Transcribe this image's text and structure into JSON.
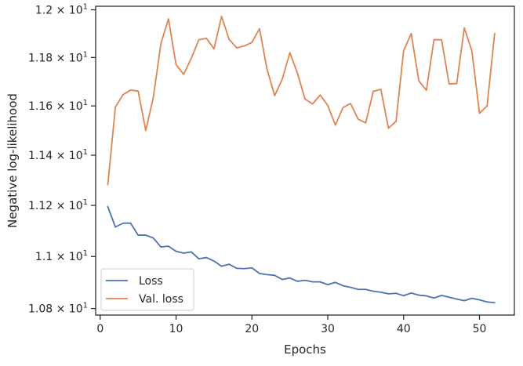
{
  "chart_data": {
    "type": "line",
    "xlabel": "Epochs",
    "ylabel": "Negative log-likelihood",
    "xlim": [
      -0.6,
      54.6
    ],
    "ylim": [
      10.775,
      12.015
    ],
    "yscale": "log",
    "grid": false,
    "legend_position": "lower-left",
    "x_ticks": [
      0,
      10,
      20,
      30,
      40,
      50
    ],
    "y_ticks": [
      {
        "value": 10.8,
        "mantissa": "1.08"
      },
      {
        "value": 11.0,
        "mantissa": "1.1"
      },
      {
        "value": 11.2,
        "mantissa": "1.12"
      },
      {
        "value": 11.4,
        "mantissa": "1.14"
      },
      {
        "value": 11.6,
        "mantissa": "1.16"
      },
      {
        "value": 11.8,
        "mantissa": "1.18"
      },
      {
        "value": 12.0,
        "mantissa": "1.2"
      }
    ],
    "tick_base": "× 10",
    "tick_exponent": "1",
    "x": [
      1,
      2,
      3,
      4,
      5,
      6,
      7,
      8,
      9,
      10,
      11,
      12,
      13,
      14,
      15,
      16,
      17,
      18,
      19,
      20,
      21,
      22,
      23,
      24,
      25,
      26,
      27,
      28,
      29,
      30,
      31,
      32,
      33,
      34,
      35,
      36,
      37,
      38,
      39,
      40,
      41,
      42,
      43,
      44,
      45,
      46,
      47,
      48,
      49,
      50,
      51,
      52
    ],
    "series": [
      {
        "name": "Loss",
        "color": "#4c72b0",
        "values": [
          11.195,
          11.115,
          11.13,
          11.13,
          11.083,
          11.083,
          11.072,
          11.037,
          11.04,
          11.02,
          11.013,
          11.018,
          10.991,
          10.996,
          10.982,
          10.962,
          10.97,
          10.954,
          10.953,
          10.956,
          10.934,
          10.93,
          10.927,
          10.911,
          10.917,
          10.904,
          10.908,
          10.902,
          10.902,
          10.891,
          10.9,
          10.887,
          10.881,
          10.873,
          10.873,
          10.866,
          10.862,
          10.856,
          10.858,
          10.849,
          10.859,
          10.851,
          10.848,
          10.84,
          10.85,
          10.843,
          10.836,
          10.83,
          10.839,
          10.833,
          10.825,
          10.822
        ]
      },
      {
        "name": "Val. loss",
        "color": "#dd8452",
        "values": [
          11.282,
          11.595,
          11.646,
          11.665,
          11.661,
          11.5,
          11.634,
          11.858,
          11.962,
          11.77,
          11.73,
          11.796,
          11.874,
          11.88,
          11.836,
          11.972,
          11.875,
          11.84,
          11.848,
          11.863,
          11.92,
          11.75,
          11.642,
          11.71,
          11.82,
          11.735,
          11.628,
          11.608,
          11.645,
          11.602,
          11.522,
          11.593,
          11.61,
          11.546,
          11.531,
          11.66,
          11.668,
          11.509,
          11.537,
          11.828,
          11.9,
          11.703,
          11.664,
          11.874,
          11.874,
          11.69,
          11.692,
          11.924,
          11.827,
          11.57,
          11.6,
          11.9
        ]
      }
    ]
  }
}
